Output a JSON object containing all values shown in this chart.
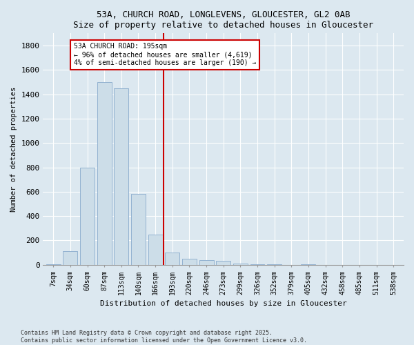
{
  "title1": "53A, CHURCH ROAD, LONGLEVENS, GLOUCESTER, GL2 0AB",
  "title2": "Size of property relative to detached houses in Gloucester",
  "xlabel": "Distribution of detached houses by size in Gloucester",
  "ylabel": "Number of detached properties",
  "bar_labels": [
    "7sqm",
    "34sqm",
    "60sqm",
    "87sqm",
    "113sqm",
    "140sqm",
    "166sqm",
    "193sqm",
    "220sqm",
    "246sqm",
    "273sqm",
    "299sqm",
    "326sqm",
    "352sqm",
    "379sqm",
    "405sqm",
    "432sqm",
    "458sqm",
    "485sqm",
    "511sqm",
    "538sqm"
  ],
  "bar_values": [
    2,
    110,
    800,
    1500,
    1450,
    580,
    250,
    100,
    50,
    40,
    30,
    10,
    5,
    2,
    0,
    2,
    0,
    0,
    0,
    0,
    0
  ],
  "bar_color": "#ccdde8",
  "bar_edge_color": "#88aacc",
  "vline_bin": 7,
  "vline_color": "#cc0000",
  "ylim": [
    0,
    1900
  ],
  "yticks": [
    0,
    200,
    400,
    600,
    800,
    1000,
    1200,
    1400,
    1600,
    1800
  ],
  "annotation_title": "53A CHURCH ROAD: 195sqm",
  "annotation_line1": "← 96% of detached houses are smaller (4,619)",
  "annotation_line2": "4% of semi-detached houses are larger (190) →",
  "footer1": "Contains HM Land Registry data © Crown copyright and database right 2025.",
  "footer2": "Contains public sector information licensed under the Open Government Licence v3.0.",
  "bg_color": "#dce8f0",
  "plot_bg_color": "#dce8f0"
}
